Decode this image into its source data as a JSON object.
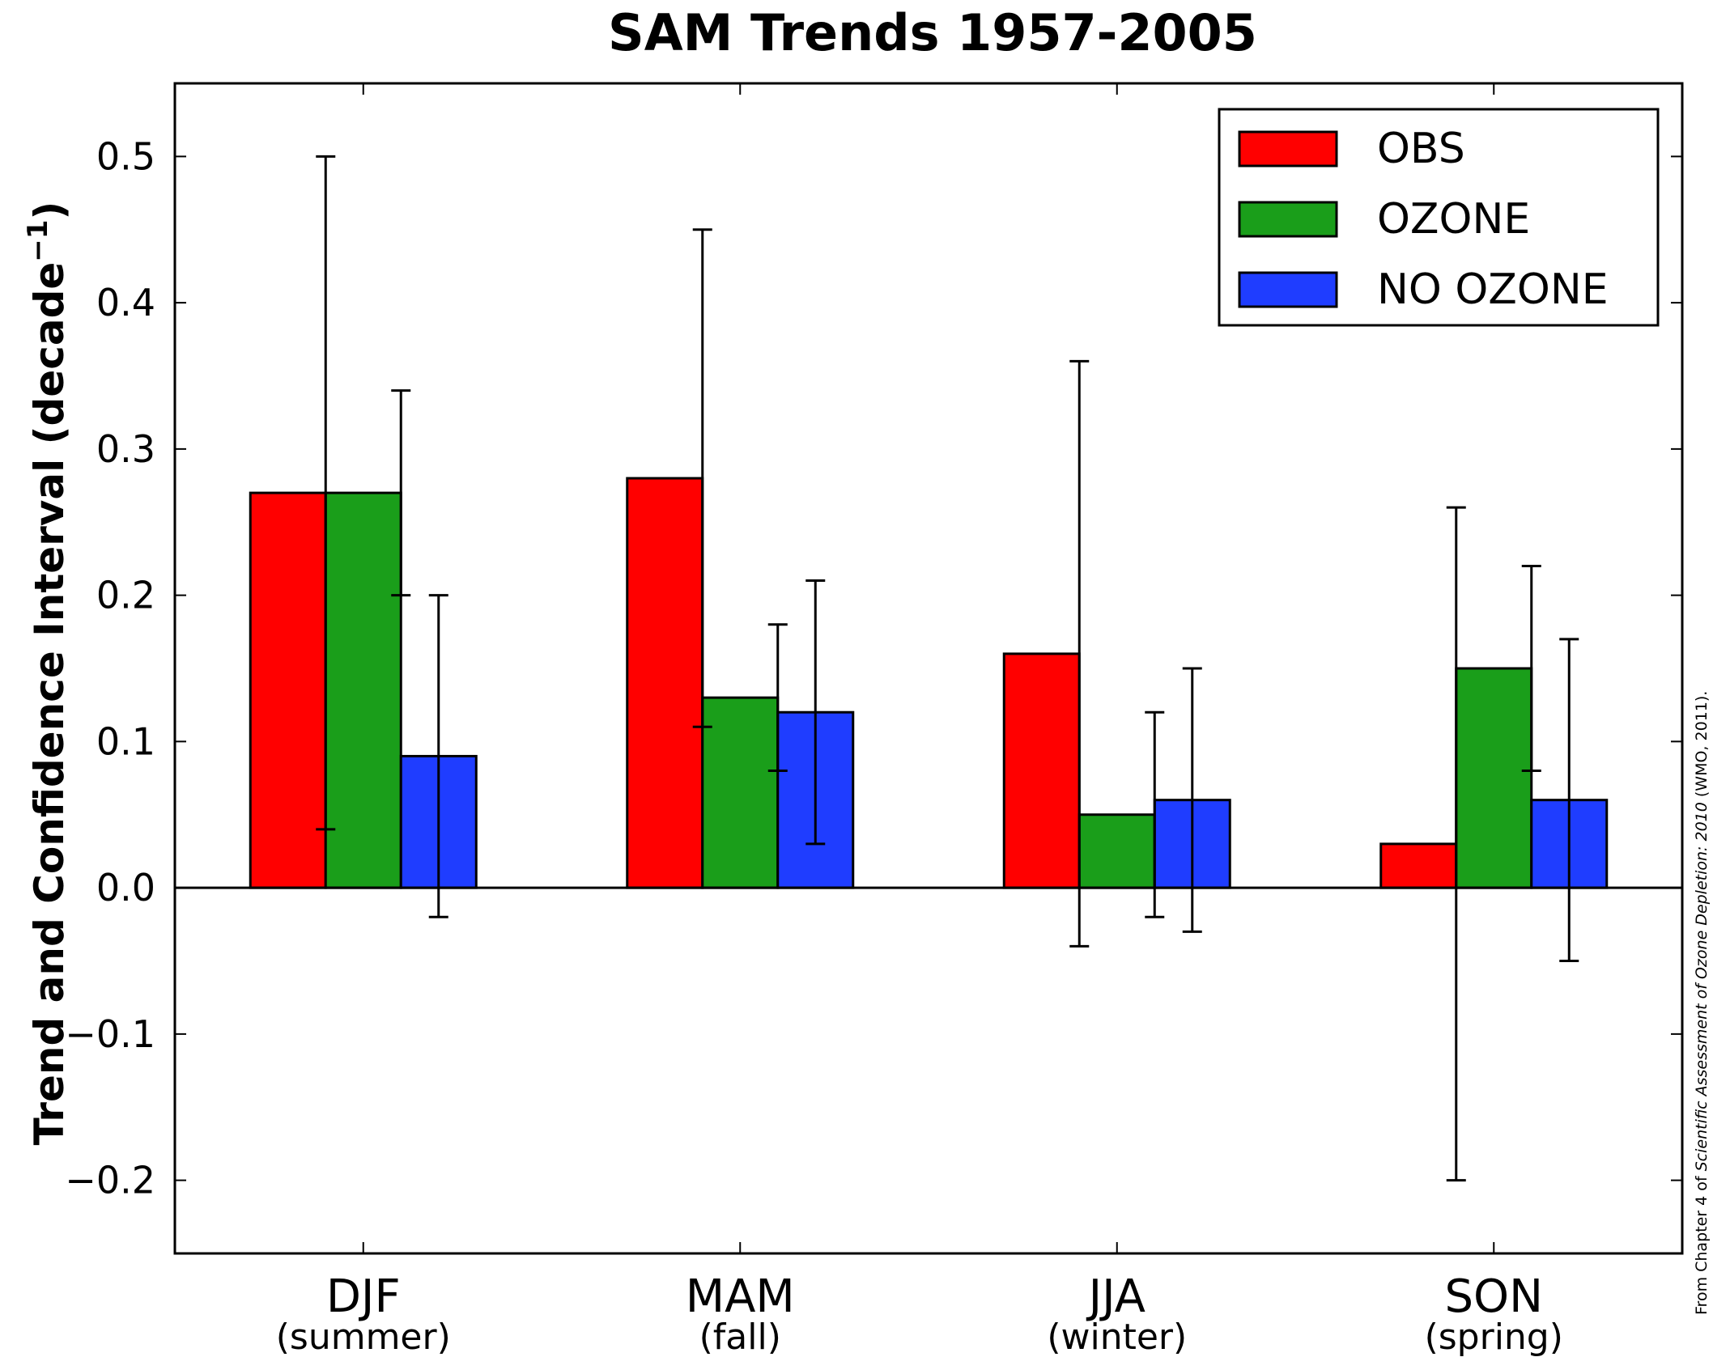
{
  "chart_data": {
    "type": "bar",
    "title": "SAM Trends 1957-2005",
    "ylabel": "Trend and Confidence Interval (decade",
    "ylabel_sup": "−1",
    "ylabel_close": ")",
    "ylim": [
      -0.25,
      0.55
    ],
    "yticks": [
      -0.2,
      -0.1,
      0.0,
      0.1,
      0.2,
      0.3,
      0.4,
      0.5
    ],
    "ytick_labels": [
      "−0.2",
      "−0.1",
      "0.0",
      "0.1",
      "0.2",
      "0.3",
      "0.4",
      "0.5"
    ],
    "categories": [
      "DJF",
      "MAM",
      "JJA",
      "SON"
    ],
    "category_sublabels": [
      "(summer)",
      "(fall)",
      "(winter)",
      "(spring)"
    ],
    "grid": false,
    "legend_position": "top-right",
    "series": [
      {
        "name": "OBS",
        "color": "#ff0000",
        "values": [
          0.27,
          0.28,
          0.16,
          0.03
        ],
        "err_low": [
          0.04,
          0.11,
          -0.04,
          -0.2
        ],
        "err_high": [
          0.5,
          0.45,
          0.36,
          0.26
        ]
      },
      {
        "name": "OZONE",
        "color": "#1a9e1a",
        "values": [
          0.27,
          0.13,
          0.05,
          0.15
        ],
        "err_low": [
          0.2,
          0.08,
          -0.02,
          0.08
        ],
        "err_high": [
          0.34,
          0.18,
          0.12,
          0.22
        ]
      },
      {
        "name": "NO OZONE",
        "color": "#1f3dff",
        "values": [
          0.09,
          0.12,
          0.06,
          0.06
        ],
        "err_low": [
          -0.02,
          0.03,
          -0.03,
          -0.05
        ],
        "err_high": [
          0.2,
          0.21,
          0.15,
          0.17
        ]
      }
    ]
  },
  "credit": {
    "prefix": "From Chapter 4 of ",
    "italic": "Scientific Assessment of Ozone Depletion: 2010",
    "suffix": " (WMO, 2011)."
  }
}
